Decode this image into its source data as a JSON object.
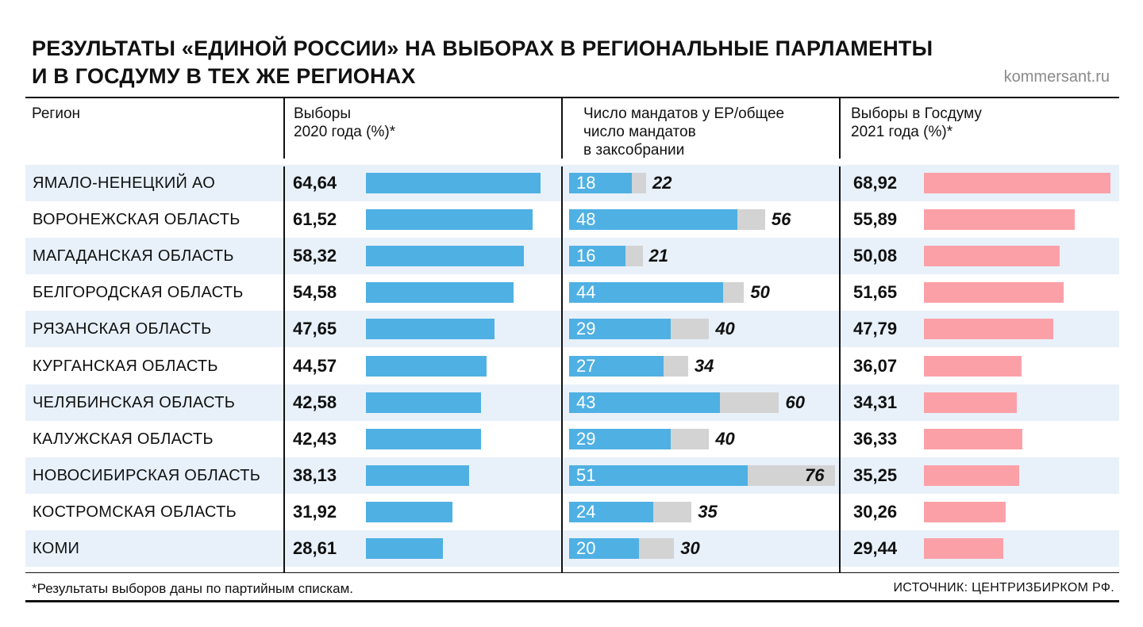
{
  "title_line1": "Результаты «Единой России» на выборах в региональные парламенты",
  "title_line2": "и в Госдуму в тех же регионах",
  "site": "kommersant.ru",
  "headers": {
    "region": "Регион",
    "elections2020_line1": "Выборы",
    "elections2020_line2": "2020 года (%)*",
    "seats_line1": "Число мандатов у ЕР/общее",
    "seats_line2": "число мандатов",
    "seats_line3": "в заксобрании",
    "duma2021_line1": "Выборы в Госдуму",
    "duma2021_line2": "2021 года (%)*"
  },
  "footnote": "*Результаты выборов даны по партийным спискам.",
  "source": "Источник: Центризбирком РФ.",
  "colors": {
    "blue": "#4fb0e3",
    "pink": "#fca0a7",
    "grey": "#d3d3d3",
    "row_shade": "#e8f1fa"
  },
  "chart_data": {
    "type": "table",
    "columns": [
      "Регион",
      "Выборы 2020 года (%)*",
      "Число мандатов у ЕР",
      "Общее число мандатов",
      "Выборы в Госдуму 2021 года (%)*"
    ],
    "rows": [
      {
        "region": "Ямало-Ненецкий АО",
        "v2020": "64,64",
        "v2020_num": 64.64,
        "seats_er": 18,
        "seats_total": 22,
        "v2021": "68,92",
        "v2021_num": 68.92
      },
      {
        "region": "Воронежская область",
        "v2020": "61,52",
        "v2020_num": 61.52,
        "seats_er": 48,
        "seats_total": 56,
        "v2021": "55,89",
        "v2021_num": 55.89
      },
      {
        "region": "Магаданская область",
        "v2020": "58,32",
        "v2020_num": 58.32,
        "seats_er": 16,
        "seats_total": 21,
        "v2021": "50,08",
        "v2021_num": 50.08
      },
      {
        "region": "Белгородская область",
        "v2020": "54,58",
        "v2020_num": 54.58,
        "seats_er": 44,
        "seats_total": 50,
        "v2021": "51,65",
        "v2021_num": 51.65
      },
      {
        "region": "Рязанская область",
        "v2020": "47,65",
        "v2020_num": 47.65,
        "seats_er": 29,
        "seats_total": 40,
        "v2021": "47,79",
        "v2021_num": 47.79
      },
      {
        "region": "Курганская область",
        "v2020": "44,57",
        "v2020_num": 44.57,
        "seats_er": 27,
        "seats_total": 34,
        "v2021": "36,07",
        "v2021_num": 36.07
      },
      {
        "region": "Челябинская область",
        "v2020": "42,58",
        "v2020_num": 42.58,
        "seats_er": 43,
        "seats_total": 60,
        "v2021": "34,31",
        "v2021_num": 34.31
      },
      {
        "region": "Калужская область",
        "v2020": "42,43",
        "v2020_num": 42.43,
        "seats_er": 29,
        "seats_total": 40,
        "v2021": "36,33",
        "v2021_num": 36.33
      },
      {
        "region": "Новосибирская область",
        "v2020": "38,13",
        "v2020_num": 38.13,
        "seats_er": 51,
        "seats_total": 76,
        "v2021": "35,25",
        "v2021_num": 35.25
      },
      {
        "region": "Костромская область",
        "v2020": "31,92",
        "v2020_num": 31.92,
        "seats_er": 24,
        "seats_total": 35,
        "v2021": "30,26",
        "v2021_num": 30.26
      },
      {
        "region": "Коми",
        "v2020": "28,61",
        "v2020_num": 28.61,
        "seats_er": 20,
        "seats_total": 30,
        "v2021": "29,44",
        "v2021_num": 29.44
      }
    ]
  }
}
